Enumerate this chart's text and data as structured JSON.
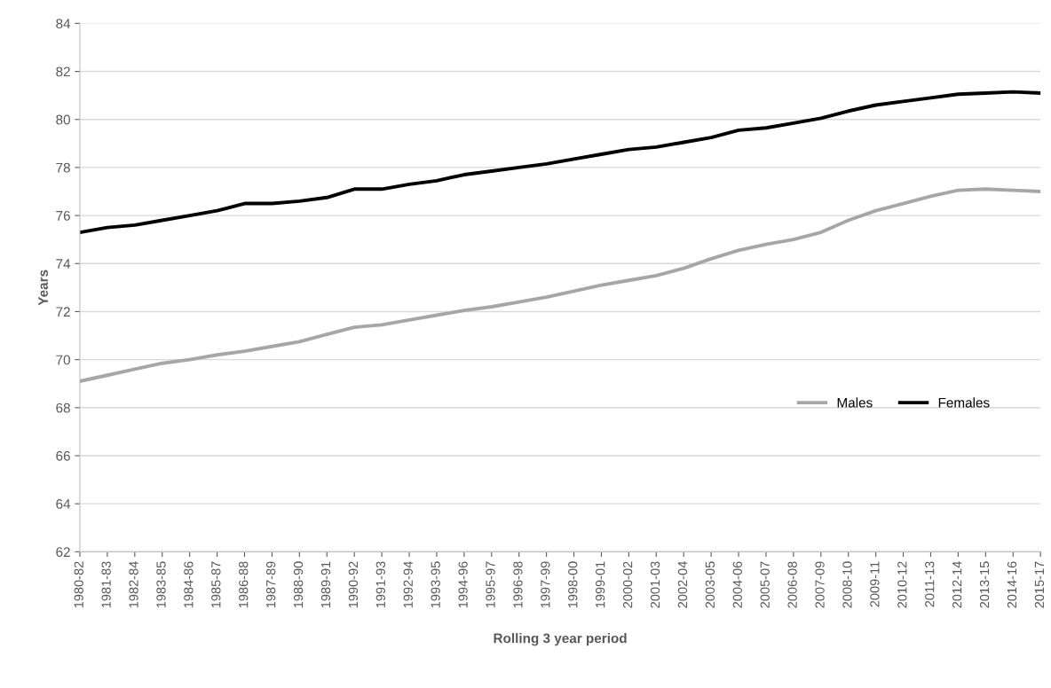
{
  "chart_data": {
    "type": "line",
    "xlabel": "Rolling 3 year period",
    "ylabel": "Years",
    "categories": [
      "1980-82",
      "1981-83",
      "1982-84",
      "1983-85",
      "1984-86",
      "1985-87",
      "1986-88",
      "1987-89",
      "1988-90",
      "1989-91",
      "1990-92",
      "1991-93",
      "1992-94",
      "1993-95",
      "1994-96",
      "1995-97",
      "1996-98",
      "1997-99",
      "1998-00",
      "1999-01",
      "2000-02",
      "2001-03",
      "2002-04",
      "2003-05",
      "2004-06",
      "2005-07",
      "2006-08",
      "2007-09",
      "2008-10",
      "2009-11",
      "2010-12",
      "2011-13",
      "2012-14",
      "2013-15",
      "2014-16",
      "2015-17"
    ],
    "series": [
      {
        "name": "Males",
        "color": "#a6a6a6",
        "values": [
          69.1,
          69.35,
          69.6,
          69.85,
          70.0,
          70.2,
          70.35,
          70.55,
          70.75,
          71.05,
          71.35,
          71.45,
          71.65,
          71.85,
          72.05,
          72.2,
          72.4,
          72.6,
          72.85,
          73.1,
          73.3,
          73.5,
          73.8,
          74.2,
          74.55,
          74.8,
          75.0,
          75.3,
          75.8,
          76.2,
          76.5,
          76.8,
          77.05,
          77.1,
          77.05,
          77.0
        ]
      },
      {
        "name": "Females",
        "color": "#000000",
        "values": [
          75.3,
          75.5,
          75.6,
          75.8,
          76.0,
          76.2,
          76.5,
          76.5,
          76.6,
          76.75,
          77.1,
          77.1,
          77.3,
          77.45,
          77.7,
          77.85,
          78.0,
          78.15,
          78.35,
          78.55,
          78.75,
          78.85,
          79.05,
          79.25,
          79.55,
          79.65,
          79.85,
          80.05,
          80.35,
          80.6,
          80.75,
          80.9,
          81.05,
          81.1,
          81.15,
          81.1
        ]
      }
    ],
    "ylim": [
      62,
      84
    ],
    "yticks": [
      62,
      64,
      66,
      68,
      70,
      72,
      74,
      76,
      78,
      80,
      82,
      84
    ],
    "grid": "y",
    "legend": "center right",
    "marker": "none",
    "line_style": "solid"
  }
}
